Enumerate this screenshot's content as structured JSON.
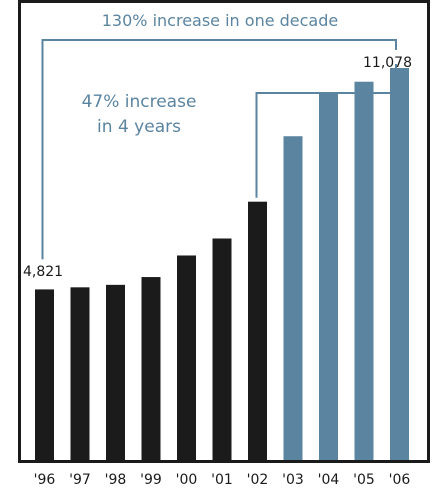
{
  "chart_data": {
    "type": "bar",
    "categories": [
      "'96",
      "'97",
      "'98",
      "'99",
      "'00",
      "'01",
      "'02",
      "'03",
      "'04",
      "'05",
      "'06"
    ],
    "values": [
      4821,
      4880,
      4950,
      5170,
      5780,
      6260,
      7300,
      9150,
      10400,
      10690,
      11078
    ],
    "bar_colors": [
      "#1b1b1b",
      "#1b1b1b",
      "#1b1b1b",
      "#1b1b1b",
      "#1b1b1b",
      "#1b1b1b",
      "#1b1b1b",
      "#5b84a0",
      "#5b84a0",
      "#5b84a0",
      "#5b84a0"
    ],
    "ylim": [
      0,
      13000
    ],
    "grid": false,
    "title": "",
    "xlabel": "",
    "ylabel": "",
    "annotations": {
      "decade_text": "130% increase in one decade",
      "four_year_line1": "47% increase",
      "four_year_line2": "in 4 years",
      "start_label": "4,821",
      "end_label": "11,078"
    },
    "colors": {
      "dark_bar": "#1b1b1b",
      "blue_bar": "#5b84a0",
      "annotation": "#5b84a0",
      "frame": "#1b1b1b"
    }
  }
}
